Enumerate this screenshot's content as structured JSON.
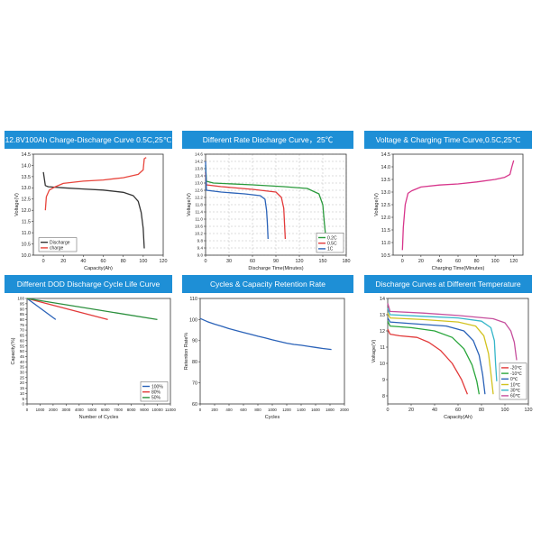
{
  "chart_data": [
    {
      "type": "line",
      "title": "12.8V100Ah Charge-Discharge Curve 0.5C,25℃",
      "xlabel": "Capacity(Ah)",
      "ylabel": "Voltage(V)",
      "xlim": [
        -10,
        120
      ],
      "ylim": [
        10.0,
        14.5
      ],
      "xticks": [
        0,
        20,
        40,
        60,
        80,
        100,
        120
      ],
      "yticks": [
        10.0,
        10.5,
        11.0,
        11.5,
        12.0,
        12.5,
        13.0,
        13.5,
        14.0,
        14.5
      ],
      "ytick_decimals": 1,
      "grid": false,
      "legend": "bottom-left",
      "series": [
        {
          "name": "Discharge",
          "color": "#333333",
          "points": [
            [
              0,
              13.7
            ],
            [
              2,
              13.1
            ],
            [
              5,
              13.05
            ],
            [
              20,
              13.0
            ],
            [
              40,
              12.95
            ],
            [
              60,
              12.9
            ],
            [
              80,
              12.8
            ],
            [
              90,
              12.65
            ],
            [
              95,
              12.4
            ],
            [
              98,
              11.9
            ],
            [
              100,
              11.2
            ],
            [
              101,
              10.3
            ]
          ]
        },
        {
          "name": "charge",
          "color": "#e8453c",
          "points": [
            [
              2,
              12.0
            ],
            [
              3,
              12.6
            ],
            [
              6,
              12.9
            ],
            [
              12,
              13.05
            ],
            [
              20,
              13.2
            ],
            [
              40,
              13.3
            ],
            [
              60,
              13.35
            ],
            [
              80,
              13.45
            ],
            [
              95,
              13.6
            ],
            [
              100,
              13.8
            ],
            [
              101,
              14.3
            ],
            [
              103,
              14.35
            ]
          ]
        }
      ]
    },
    {
      "type": "line",
      "title": "Different  Rate Discharge Curve，25℃",
      "xlabel": "Discharge Time(Minutes)",
      "ylabel": "Voltage(V)",
      "xlim": [
        0,
        180
      ],
      "ylim": [
        9.0,
        14.6
      ],
      "xticks": [
        0,
        30,
        60,
        90,
        120,
        150,
        180
      ],
      "yticks": [
        9.0,
        9.4,
        9.8,
        10.2,
        10.6,
        11.0,
        11.4,
        11.8,
        12.2,
        12.6,
        13.0,
        13.4,
        13.8,
        14.2,
        14.6
      ],
      "ytick_decimals": 1,
      "grid": true,
      "legend": "bottom-right",
      "series": [
        {
          "name": "0.2C",
          "color": "#2a9a3c",
          "points": [
            [
              0,
              14.0
            ],
            [
              1,
              13.1
            ],
            [
              10,
              13.0
            ],
            [
              60,
              12.9
            ],
            [
              100,
              12.8
            ],
            [
              130,
              12.7
            ],
            [
              145,
              12.4
            ],
            [
              150,
              11.8
            ],
            [
              152,
              10.8
            ],
            [
              154,
              9.9
            ]
          ]
        },
        {
          "name": "0.5C",
          "color": "#e23a3a",
          "points": [
            [
              0,
              13.6
            ],
            [
              1,
              12.9
            ],
            [
              20,
              12.8
            ],
            [
              60,
              12.65
            ],
            [
              90,
              12.5
            ],
            [
              97,
              12.2
            ],
            [
              100,
              11.6
            ],
            [
              101,
              10.8
            ],
            [
              102,
              9.9
            ]
          ]
        },
        {
          "name": "1C",
          "color": "#2a62b8",
          "points": [
            [
              0,
              14.2
            ],
            [
              1,
              12.6
            ],
            [
              20,
              12.5
            ],
            [
              50,
              12.4
            ],
            [
              70,
              12.3
            ],
            [
              76,
              12.1
            ],
            [
              78,
              11.5
            ],
            [
              79,
              10.8
            ],
            [
              80,
              9.9
            ]
          ]
        }
      ]
    },
    {
      "type": "line",
      "title": "Voltage & Charging Time Curve,0.5C,25℃",
      "xlabel": "Charging Time(Minutes)",
      "ylabel": "Voltage(V)",
      "xlim": [
        -10,
        130
      ],
      "ylim": [
        10.5,
        14.5
      ],
      "xticks": [
        0,
        20,
        40,
        60,
        80,
        100,
        120
      ],
      "yticks": [
        10.5,
        11.0,
        11.5,
        12.0,
        12.5,
        13.0,
        13.5,
        14.0,
        14.5
      ],
      "ytick_decimals": 1,
      "grid": false,
      "legend": "none",
      "series": [
        {
          "name": "",
          "color": "#d7358b",
          "points": [
            [
              0,
              10.7
            ],
            [
              1,
              11.6
            ],
            [
              3,
              12.5
            ],
            [
              6,
              12.95
            ],
            [
              10,
              13.05
            ],
            [
              20,
              13.2
            ],
            [
              40,
              13.28
            ],
            [
              60,
              13.32
            ],
            [
              80,
              13.4
            ],
            [
              100,
              13.5
            ],
            [
              110,
              13.58
            ],
            [
              116,
              13.7
            ],
            [
              118,
              14.0
            ],
            [
              120,
              14.25
            ]
          ]
        }
      ]
    },
    {
      "type": "line",
      "title": "Different DOD Discharge Cycle Life Curve",
      "xlabel": "Number of Cycles",
      "ylabel": "Capacity(%)",
      "xlim": [
        0,
        11000
      ],
      "ylim": [
        0,
        100
      ],
      "xticks": [
        0,
        1000,
        2000,
        3000,
        4000,
        5000,
        6000,
        7000,
        8000,
        9000,
        10000,
        11000
      ],
      "yticks": [
        0,
        5,
        10,
        15,
        20,
        25,
        30,
        35,
        40,
        45,
        50,
        55,
        60,
        65,
        70,
        75,
        80,
        85,
        90,
        95,
        100
      ],
      "ytick_decimals": 0,
      "grid": false,
      "legend": "bottom-right",
      "series": [
        {
          "name": "100%",
          "color": "#2a62b8",
          "points": [
            [
              0,
              100
            ],
            [
              2200,
              80
            ]
          ]
        },
        {
          "name": "80%",
          "color": "#e23a3a",
          "points": [
            [
              0,
              100
            ],
            [
              6200,
              80
            ]
          ]
        },
        {
          "name": "50%",
          "color": "#2a8f3c",
          "points": [
            [
              0,
              100
            ],
            [
              10000,
              80
            ]
          ]
        }
      ]
    },
    {
      "type": "line",
      "title": "Cycles & Capacity Retention Rate",
      "xlabel": "Cycles",
      "ylabel": "Retention Rate%",
      "xlim": [
        0,
        2000
      ],
      "ylim": [
        60,
        110
      ],
      "xticks": [
        0,
        200,
        400,
        600,
        800,
        1000,
        1200,
        1400,
        1600,
        1800,
        2000
      ],
      "yticks": [
        60,
        70,
        80,
        90,
        100,
        110
      ],
      "ytick_decimals": 0,
      "grid": false,
      "legend": "none",
      "series": [
        {
          "name": "",
          "color": "#2a62b8",
          "points": [
            [
              0,
              100.5
            ],
            [
              100,
              99
            ],
            [
              200,
              97.8
            ],
            [
              300,
              96.8
            ],
            [
              400,
              95.7
            ],
            [
              500,
              94.8
            ],
            [
              600,
              93.9
            ],
            [
              700,
              93.0
            ],
            [
              800,
              92.1
            ],
            [
              900,
              91.3
            ],
            [
              1000,
              90.4
            ],
            [
              1100,
              89.6
            ],
            [
              1200,
              88.8
            ],
            [
              1300,
              88.2
            ],
            [
              1400,
              87.8
            ],
            [
              1500,
              87.3
            ],
            [
              1600,
              86.8
            ],
            [
              1700,
              86.3
            ],
            [
              1820,
              85.8
            ]
          ]
        }
      ]
    },
    {
      "type": "line",
      "title": "Discharge Curves at Different Temperature",
      "xlabel": "Capacity(Ah)",
      "ylabel": "Voltage(V)",
      "xlim": [
        0,
        120
      ],
      "ylim": [
        7.5,
        14
      ],
      "xticks": [
        0,
        20,
        40,
        60,
        80,
        100,
        120
      ],
      "yticks": [
        8,
        9,
        10,
        11,
        12,
        13,
        14
      ],
      "ytick_decimals": 0,
      "grid": false,
      "legend": "right",
      "series": [
        {
          "name": "-20℃",
          "color": "#e23a3a",
          "points": [
            [
              0,
              12.1
            ],
            [
              2,
              11.8
            ],
            [
              10,
              11.7
            ],
            [
              25,
              11.6
            ],
            [
              35,
              11.3
            ],
            [
              45,
              10.8
            ],
            [
              55,
              10.0
            ],
            [
              63,
              9.0
            ],
            [
              68,
              8.1
            ]
          ]
        },
        {
          "name": "-10℃",
          "color": "#2aa63c",
          "points": [
            [
              0,
              12.6
            ],
            [
              2,
              12.3
            ],
            [
              20,
              12.2
            ],
            [
              40,
              12.0
            ],
            [
              55,
              11.6
            ],
            [
              65,
              10.9
            ],
            [
              72,
              9.9
            ],
            [
              76,
              8.9
            ],
            [
              78,
              8.1
            ]
          ]
        },
        {
          "name": "0℃",
          "color": "#2a62b8",
          "points": [
            [
              0,
              12.8
            ],
            [
              2,
              12.55
            ],
            [
              20,
              12.45
            ],
            [
              50,
              12.3
            ],
            [
              65,
              12.0
            ],
            [
              73,
              11.4
            ],
            [
              78,
              10.5
            ],
            [
              81,
              9.3
            ],
            [
              83,
              8.1
            ]
          ]
        },
        {
          "name": "10℃",
          "color": "#d2c21e",
          "points": [
            [
              0,
              13.1
            ],
            [
              2,
              12.8
            ],
            [
              30,
              12.7
            ],
            [
              60,
              12.55
            ],
            [
              75,
              12.3
            ],
            [
              82,
              11.7
            ],
            [
              86,
              10.6
            ],
            [
              88,
              9.4
            ],
            [
              90,
              8.1
            ]
          ]
        },
        {
          "name": "30℃",
          "color": "#35b6c9",
          "points": [
            [
              0,
              13.4
            ],
            [
              2,
              13.0
            ],
            [
              30,
              12.9
            ],
            [
              60,
              12.8
            ],
            [
              80,
              12.6
            ],
            [
              88,
              12.2
            ],
            [
              91,
              11.4
            ],
            [
              92,
              10.0
            ],
            [
              93,
              8.9
            ]
          ]
        },
        {
          "name": "60℃",
          "color": "#c64f9d",
          "points": [
            [
              0,
              13.7
            ],
            [
              2,
              13.2
            ],
            [
              30,
              13.1
            ],
            [
              60,
              12.95
            ],
            [
              90,
              12.75
            ],
            [
              100,
              12.5
            ],
            [
              105,
              12.0
            ],
            [
              108,
              11.3
            ],
            [
              110,
              10.2
            ]
          ]
        }
      ]
    }
  ]
}
